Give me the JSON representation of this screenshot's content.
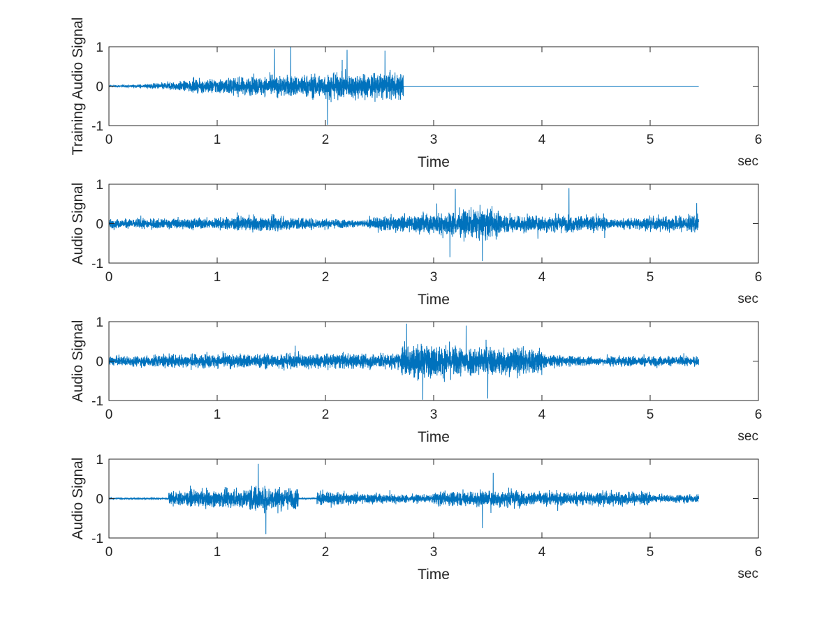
{
  "chart_data": [
    {
      "type": "line",
      "series": [
        {
          "color": "#0072BD",
          "fs": 1000,
          "duration": 5.45,
          "segments": [
            {
              "t0": 0.0,
              "t1": 0.3,
              "amp": [
                0.03,
                0.08
              ]
            },
            {
              "t0": 0.3,
              "t1": 1.0,
              "amp": [
                0.08,
                0.35
              ]
            },
            {
              "t0": 1.0,
              "t1": 2.0,
              "amp": [
                0.35,
                0.55
              ]
            },
            {
              "t0": 2.0,
              "t1": 2.72,
              "amp": [
                0.55,
                0.6
              ]
            },
            {
              "t0": 2.72,
              "t1": 5.45,
              "amp": [
                0.0,
                0.0
              ]
            }
          ],
          "peaks": [
            [
              1.53,
              0.95
            ],
            [
              1.68,
              1.0
            ],
            [
              2.02,
              -0.98
            ],
            [
              2.55,
              0.9
            ],
            [
              2.2,
              0.92
            ]
          ]
        }
      ],
      "xlabel": "Time",
      "ylabel": "Training Audio Signal",
      "unit": "sec",
      "xlim": [
        0,
        6
      ],
      "ylim": [
        -1,
        1
      ],
      "xticks": [
        0,
        1,
        2,
        3,
        4,
        5,
        6
      ],
      "yticks": [
        -1,
        0,
        1
      ],
      "xticklabels": [
        "0",
        "1",
        "2",
        "3",
        "4",
        "5",
        "6"
      ],
      "yticklabels": [
        "-1",
        "0",
        "1"
      ]
    },
    {
      "type": "line",
      "series": [
        {
          "color": "#0072BD",
          "fs": 1000,
          "duration": 5.45,
          "segments": [
            {
              "t0": 0.0,
              "t1": 0.9,
              "amp": [
                0.2,
                0.25
              ]
            },
            {
              "t0": 0.9,
              "t1": 1.6,
              "amp": [
                0.25,
                0.35
              ]
            },
            {
              "t0": 1.6,
              "t1": 2.4,
              "amp": [
                0.3,
                0.15
              ]
            },
            {
              "t0": 2.4,
              "t1": 3.6,
              "amp": [
                0.25,
                0.7
              ]
            },
            {
              "t0": 3.6,
              "t1": 4.6,
              "amp": [
                0.4,
                0.35
              ]
            },
            {
              "t0": 4.6,
              "t1": 5.45,
              "amp": [
                0.2,
                0.4
              ]
            }
          ],
          "peaks": [
            [
              3.2,
              0.88
            ],
            [
              3.45,
              -0.95
            ],
            [
              4.25,
              0.9
            ],
            [
              3.15,
              -0.85
            ],
            [
              5.43,
              0.52
            ]
          ]
        }
      ],
      "xlabel": "Time",
      "ylabel": "Audio Signal",
      "unit": "sec",
      "xlim": [
        0,
        6
      ],
      "ylim": [
        -1,
        1
      ],
      "xticks": [
        0,
        1,
        2,
        3,
        4,
        5,
        6
      ],
      "yticks": [
        -1,
        0,
        1
      ],
      "xticklabels": [
        "0",
        "1",
        "2",
        "3",
        "4",
        "5",
        "6"
      ],
      "yticklabels": [
        "-1",
        "0",
        "1"
      ]
    },
    {
      "type": "line",
      "series": [
        {
          "color": "#0072BD",
          "fs": 1000,
          "duration": 5.45,
          "segments": [
            {
              "t0": 0.0,
              "t1": 0.4,
              "amp": [
                0.2,
                0.25
              ]
            },
            {
              "t0": 0.4,
              "t1": 2.7,
              "amp": [
                0.3,
                0.35
              ]
            },
            {
              "t0": 2.7,
              "t1": 4.0,
              "amp": [
                0.75,
                0.6
              ]
            },
            {
              "t0": 4.0,
              "t1": 4.6,
              "amp": [
                0.3,
                0.15
              ]
            },
            {
              "t0": 4.6,
              "t1": 5.45,
              "amp": [
                0.25,
                0.2
              ]
            }
          ],
          "peaks": [
            [
              2.75,
              0.95
            ],
            [
              2.9,
              -0.98
            ],
            [
              3.5,
              -0.95
            ],
            [
              3.3,
              0.9
            ]
          ]
        }
      ],
      "xlabel": "Time",
      "ylabel": "Audio Signal",
      "unit": "sec",
      "xlim": [
        0,
        6
      ],
      "ylim": [
        -1,
        1
      ],
      "xticks": [
        0,
        1,
        2,
        3,
        4,
        5,
        6
      ],
      "yticks": [
        -1,
        0,
        1
      ],
      "xticklabels": [
        "0",
        "1",
        "2",
        "3",
        "4",
        "5",
        "6"
      ],
      "yticklabels": [
        "-1",
        "0",
        "1"
      ]
    },
    {
      "type": "line",
      "series": [
        {
          "color": "#0072BD",
          "fs": 1000,
          "duration": 5.45,
          "segments": [
            {
              "t0": 0.0,
              "t1": 0.55,
              "amp": [
                0.03,
                0.03
              ]
            },
            {
              "t0": 0.55,
              "t1": 1.3,
              "amp": [
                0.3,
                0.45
              ]
            },
            {
              "t0": 1.3,
              "t1": 1.75,
              "amp": [
                0.6,
                0.45
              ]
            },
            {
              "t0": 1.75,
              "t1": 1.92,
              "amp": [
                0.03,
                0.03
              ]
            },
            {
              "t0": 1.92,
              "t1": 3.0,
              "amp": [
                0.3,
                0.15
              ]
            },
            {
              "t0": 3.0,
              "t1": 3.8,
              "amp": [
                0.3,
                0.4
              ]
            },
            {
              "t0": 3.8,
              "t1": 5.0,
              "amp": [
                0.3,
                0.3
              ]
            },
            {
              "t0": 5.0,
              "t1": 5.45,
              "amp": [
                0.15,
                0.2
              ]
            }
          ],
          "peaks": [
            [
              1.38,
              0.88
            ],
            [
              1.45,
              -0.9
            ],
            [
              3.45,
              -0.75
            ],
            [
              3.55,
              0.65
            ]
          ]
        }
      ],
      "xlabel": "Time",
      "ylabel": "Audio Signal",
      "unit": "sec",
      "xlim": [
        0,
        6
      ],
      "ylim": [
        -1,
        1
      ],
      "xticks": [
        0,
        1,
        2,
        3,
        4,
        5,
        6
      ],
      "yticks": [
        -1,
        0,
        1
      ],
      "xticklabels": [
        "0",
        "1",
        "2",
        "3",
        "4",
        "5",
        "6"
      ],
      "yticklabels": [
        "-1",
        "0",
        "1"
      ]
    }
  ]
}
